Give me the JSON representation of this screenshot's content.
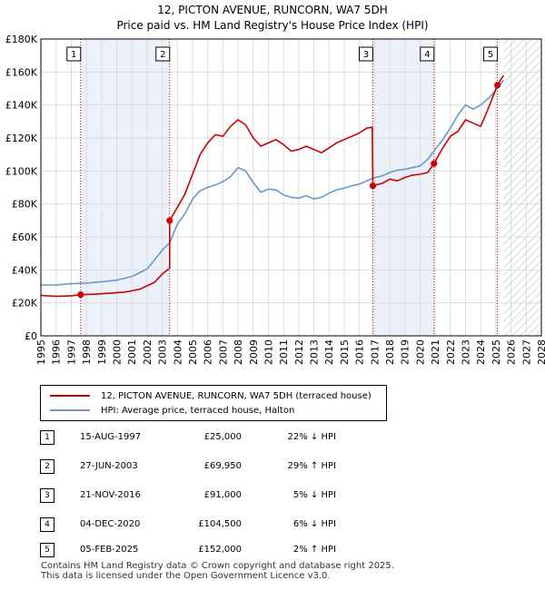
{
  "chart_data": {
    "type": "line",
    "title": "12, PICTON AVENUE, RUNCORN, WA7 5DH",
    "subtitle": "Price paid vs. HM Land Registry's House Price Index (HPI)",
    "xlabel": "",
    "ylabel": "",
    "xlim": [
      1995,
      2028
    ],
    "ylim": [
      0,
      180000
    ],
    "y_ticks": [
      {
        "value": 0,
        "label": "£0"
      },
      {
        "value": 20000,
        "label": "£20K"
      },
      {
        "value": 40000,
        "label": "£40K"
      },
      {
        "value": 60000,
        "label": "£60K"
      },
      {
        "value": 80000,
        "label": "£80K"
      },
      {
        "value": 100000,
        "label": "£100K"
      },
      {
        "value": 120000,
        "label": "£120K"
      },
      {
        "value": 140000,
        "label": "£140K"
      },
      {
        "value": 160000,
        "label": "£160K"
      },
      {
        "value": 180000,
        "label": "£180K"
      }
    ],
    "x_ticks": [
      "1995",
      "1996",
      "1997",
      "1998",
      "1999",
      "2000",
      "2001",
      "2002",
      "2003",
      "2004",
      "2005",
      "2006",
      "2007",
      "2008",
      "2009",
      "2010",
      "2011",
      "2012",
      "2013",
      "2014",
      "2015",
      "2016",
      "2017",
      "2018",
      "2019",
      "2020",
      "2021",
      "2022",
      "2023",
      "2024",
      "2025",
      "2026",
      "2027",
      "2028"
    ],
    "forecast_start": 2025.5,
    "grid": true,
    "series": [
      {
        "name": "12, PICTON AVENUE, RUNCORN, WA7 5DH (terraced house)",
        "color": "#cc0000",
        "points": [
          [
            1995.0,
            24500
          ],
          [
            1996.0,
            24000
          ],
          [
            1997.0,
            24300
          ],
          [
            1997.62,
            25000
          ],
          [
            1998.5,
            25200
          ],
          [
            1999.5,
            25800
          ],
          [
            2000.5,
            26500
          ],
          [
            2001.5,
            28200
          ],
          [
            2002.5,
            32500
          ],
          [
            2003.0,
            37500
          ],
          [
            2003.49,
            41000
          ],
          [
            2003.49,
            69950
          ],
          [
            2004.0,
            78000
          ],
          [
            2004.5,
            86000
          ],
          [
            2005.0,
            98000
          ],
          [
            2005.5,
            110000
          ],
          [
            2006.0,
            117000
          ],
          [
            2006.5,
            122000
          ],
          [
            2007.0,
            121000
          ],
          [
            2007.5,
            127000
          ],
          [
            2008.0,
            131000
          ],
          [
            2008.5,
            128000
          ],
          [
            2009.0,
            120000
          ],
          [
            2009.5,
            115000
          ],
          [
            2010.0,
            117000
          ],
          [
            2010.5,
            119000
          ],
          [
            2011.0,
            116000
          ],
          [
            2011.5,
            112000
          ],
          [
            2012.0,
            113000
          ],
          [
            2012.5,
            115000
          ],
          [
            2013.0,
            113000
          ],
          [
            2013.5,
            111000
          ],
          [
            2014.0,
            114000
          ],
          [
            2014.5,
            117000
          ],
          [
            2015.0,
            119000
          ],
          [
            2015.5,
            121000
          ],
          [
            2016.0,
            123000
          ],
          [
            2016.5,
            126000
          ],
          [
            2016.85,
            126500
          ],
          [
            2016.89,
            91000
          ],
          [
            2017.5,
            92500
          ],
          [
            2018.0,
            95000
          ],
          [
            2018.5,
            94000
          ],
          [
            2019.0,
            96000
          ],
          [
            2019.5,
            97500
          ],
          [
            2020.0,
            98000
          ],
          [
            2020.5,
            99000
          ],
          [
            2020.92,
            104500
          ],
          [
            2021.5,
            114000
          ],
          [
            2022.0,
            121000
          ],
          [
            2022.5,
            124000
          ],
          [
            2023.0,
            131000
          ],
          [
            2023.5,
            129000
          ],
          [
            2024.0,
            127000
          ],
          [
            2024.5,
            138000
          ],
          [
            2025.1,
            152000
          ],
          [
            2025.5,
            158000
          ]
        ]
      },
      {
        "name": "HPI: Average price, terraced house, Halton",
        "color": "#6699cc",
        "points": [
          [
            1995.0,
            30800
          ],
          [
            1996.0,
            30900
          ],
          [
            1997.0,
            31600
          ],
          [
            1998.0,
            32000
          ],
          [
            1999.0,
            32800
          ],
          [
            2000.0,
            33800
          ],
          [
            2001.0,
            36000
          ],
          [
            2002.0,
            40500
          ],
          [
            2002.5,
            46000
          ],
          [
            2003.0,
            52000
          ],
          [
            2003.5,
            56500
          ],
          [
            2004.0,
            68000
          ],
          [
            2004.5,
            74000
          ],
          [
            2005.0,
            83000
          ],
          [
            2005.5,
            88000
          ],
          [
            2006.0,
            90000
          ],
          [
            2006.5,
            91500
          ],
          [
            2007.0,
            93500
          ],
          [
            2007.5,
            96500
          ],
          [
            2008.0,
            102000
          ],
          [
            2008.5,
            100000
          ],
          [
            2009.0,
            93000
          ],
          [
            2009.5,
            87000
          ],
          [
            2010.0,
            89000
          ],
          [
            2010.5,
            88500
          ],
          [
            2011.0,
            85500
          ],
          [
            2011.5,
            84000
          ],
          [
            2012.0,
            83500
          ],
          [
            2012.5,
            85000
          ],
          [
            2013.0,
            83000
          ],
          [
            2013.5,
            84000
          ],
          [
            2014.0,
            86500
          ],
          [
            2014.5,
            88500
          ],
          [
            2015.0,
            89500
          ],
          [
            2015.5,
            91000
          ],
          [
            2016.0,
            92000
          ],
          [
            2016.5,
            94000
          ],
          [
            2017.0,
            96000
          ],
          [
            2017.5,
            97000
          ],
          [
            2018.0,
            99000
          ],
          [
            2018.5,
            100500
          ],
          [
            2019.0,
            101000
          ],
          [
            2019.5,
            102000
          ],
          [
            2020.0,
            103000
          ],
          [
            2020.5,
            107000
          ],
          [
            2021.0,
            113000
          ],
          [
            2021.5,
            119000
          ],
          [
            2022.0,
            126000
          ],
          [
            2022.5,
            134000
          ],
          [
            2023.0,
            140000
          ],
          [
            2023.5,
            137500
          ],
          [
            2024.0,
            140000
          ],
          [
            2024.5,
            144000
          ],
          [
            2025.0,
            149000
          ],
          [
            2025.5,
            155000
          ]
        ]
      }
    ],
    "sales": [
      {
        "label": "1",
        "x": 1997.62,
        "value": 25000,
        "date": "15-AUG-1997",
        "price": "£25,000",
        "hpi": "22% ↓ HPI"
      },
      {
        "label": "2",
        "x": 2003.49,
        "value": 69950,
        "date": "27-JUN-2003",
        "price": "£69,950",
        "hpi": "29% ↑ HPI"
      },
      {
        "label": "3",
        "x": 2016.89,
        "value": 91000,
        "date": "21-NOV-2016",
        "price": "£91,000",
        "hpi": "5% ↓ HPI"
      },
      {
        "label": "4",
        "x": 2020.92,
        "value": 104500,
        "date": "04-DEC-2020",
        "price": "£104,500",
        "hpi": "6% ↓ HPI"
      },
      {
        "label": "5",
        "x": 2025.1,
        "value": 152000,
        "date": "05-FEB-2025",
        "price": "£152,000",
        "hpi": "2% ↑ HPI"
      }
    ],
    "legend": [
      {
        "label": "12, PICTON AVENUE, RUNCORN, WA7 5DH (terraced house)",
        "color": "#cc0000"
      },
      {
        "label": "HPI: Average price, terraced house, Halton",
        "color": "#6699cc"
      }
    ]
  },
  "footer": {
    "line1": "Contains HM Land Registry data © Crown copyright and database right 2025.",
    "line2": "This data is licensed under the Open Government Licence v3.0."
  }
}
